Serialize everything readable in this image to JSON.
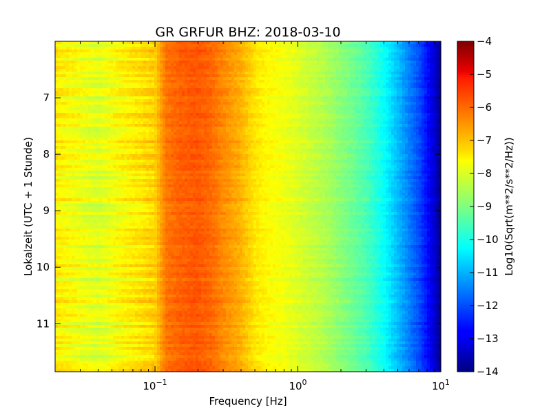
{
  "chart_data": {
    "type": "heatmap",
    "title": "GR GRFUR BHZ: 2018-03-10",
    "xlabel": "Frequency [Hz]",
    "ylabel": "Lokalzeit (UTC + 1 Stunde)",
    "x_scale": "log",
    "xlim": [
      0.02,
      10
    ],
    "x_ticks": [
      {
        "value": 0.1,
        "base": "10",
        "exp": "−1"
      },
      {
        "value": 1,
        "base": "10",
        "exp": "0"
      },
      {
        "value": 10,
        "base": "10",
        "exp": "1"
      }
    ],
    "ylim": [
      6.0,
      11.85
    ],
    "y_inverted": true,
    "y_ticks": [
      7,
      8,
      9,
      10,
      11
    ],
    "colorbar": {
      "label": "Log10(Sqrt(m**2/s**2/Hz))",
      "colormap": "jet",
      "range": [
        -14,
        -4
      ],
      "ticks": [
        -4,
        -5,
        -6,
        -7,
        -8,
        -9,
        -10,
        -11,
        -12,
        -13,
        -14
      ]
    },
    "spectrum_profile": {
      "frequency_hz": [
        0.02,
        0.04,
        0.06,
        0.08,
        0.1,
        0.12,
        0.15,
        0.2,
        0.25,
        0.3,
        0.4,
        0.5,
        0.6,
        0.8,
        1.0,
        1.5,
        2.0,
        3.0,
        4.0,
        5.0,
        6.0,
        7.0,
        8.0,
        9.0,
        10.0
      ],
      "log10_amplitude": [
        -7.6,
        -8.1,
        -7.7,
        -7.5,
        -7.3,
        -6.4,
        -6.2,
        -6.1,
        -6.3,
        -6.6,
        -7.0,
        -7.5,
        -7.7,
        -7.9,
        -8.1,
        -8.5,
        -8.9,
        -9.5,
        -10.2,
        -10.9,
        -11.5,
        -12.0,
        -12.6,
        -13.2,
        -13.8
      ]
    }
  }
}
